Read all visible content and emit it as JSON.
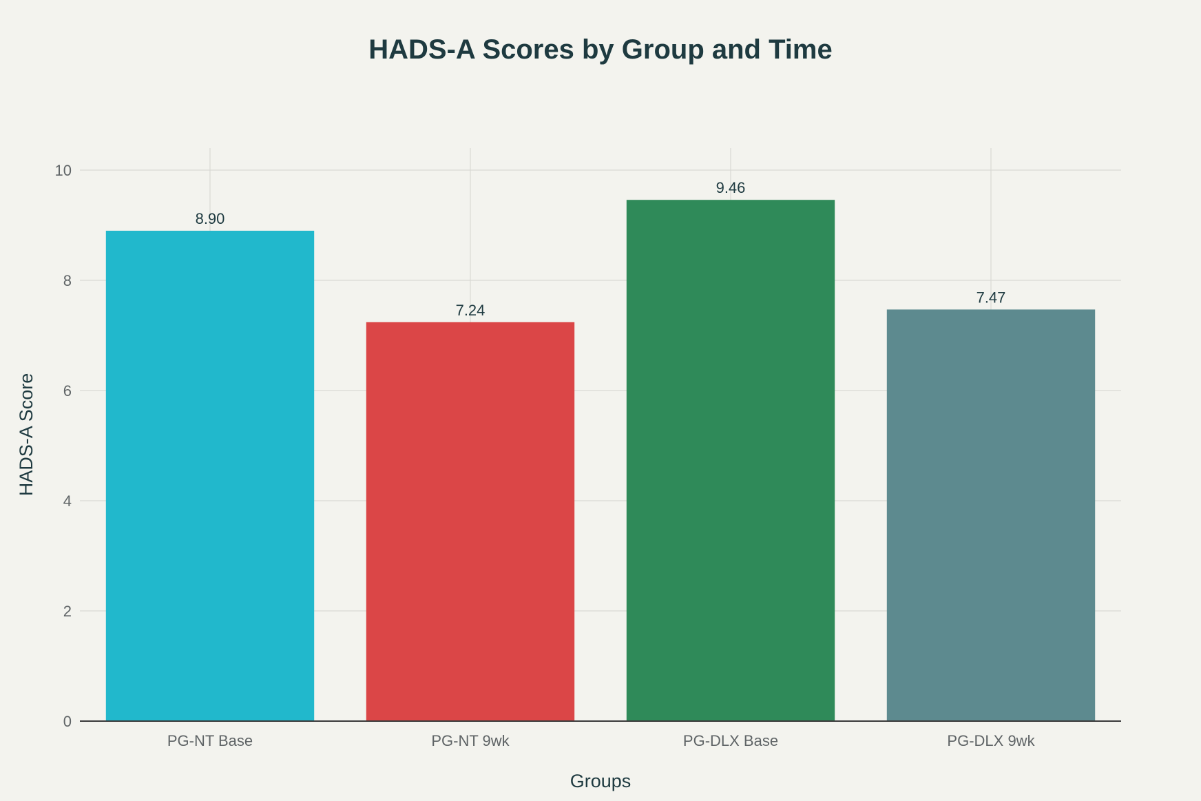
{
  "chart_data": {
    "type": "bar",
    "title": "HADS-A Scores by Group and Time",
    "xlabel": "Groups",
    "ylabel": "HADS-A Score",
    "categories": [
      "PG-NT Base",
      "PG-NT 9wk",
      "PG-DLX Base",
      "PG-DLX 9wk"
    ],
    "values": [
      8.9,
      7.24,
      9.46,
      7.47
    ],
    "value_labels": [
      "8.90",
      "7.24",
      "9.46",
      "7.47"
    ],
    "colors": [
      "#21b8cc",
      "#db4647",
      "#2f8a59",
      "#5d8a8f"
    ],
    "ylim": [
      0,
      10.4
    ],
    "yticks": [
      0,
      2,
      4,
      6,
      8,
      10
    ],
    "grid": true,
    "legend": "none"
  }
}
